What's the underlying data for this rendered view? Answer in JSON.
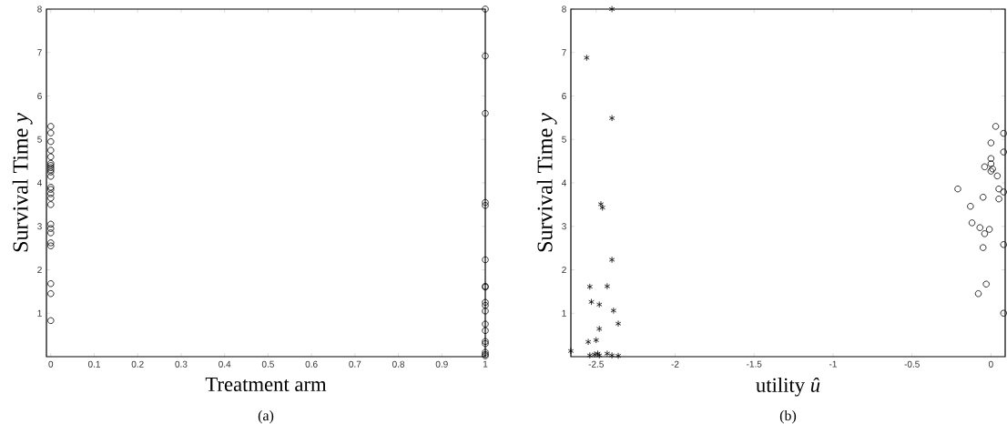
{
  "chart_data": [
    {
      "type": "scatter",
      "xlabel": "Treatment arm",
      "ylabel": "Survival Time *y*",
      "annotations": [
        "(a)"
      ],
      "xlim": [
        -0.01,
        1.0
      ],
      "ylim": [
        0,
        8
      ],
      "xticks": [
        0,
        0.1,
        0.2,
        0.3,
        0.4,
        0.5,
        0.6,
        0.7,
        0.8,
        0.9,
        1
      ],
      "yticks": [
        1,
        2,
        3,
        4,
        5,
        6,
        7,
        8
      ],
      "series": [
        {
          "color": "#000000",
          "marker": "circle",
          "x": [
            0,
            0,
            0,
            0,
            0,
            0,
            0,
            0,
            0,
            0,
            0,
            0,
            0,
            0,
            0,
            0,
            0,
            0,
            0,
            0,
            0,
            0,
            0,
            0
          ],
          "values": [
            0.83,
            1.45,
            1.68,
            2.55,
            2.62,
            2.85,
            2.95,
            3.05,
            3.5,
            3.65,
            3.75,
            3.85,
            3.9,
            4.15,
            4.25,
            4.3,
            4.35,
            4.4,
            4.45,
            4.6,
            4.75,
            4.95,
            5.15,
            5.3
          ]
        },
        {
          "color": "#000000",
          "marker": "circle",
          "x": [
            1,
            1,
            1,
            1,
            1,
            1,
            1,
            1,
            1,
            1,
            1,
            1,
            1,
            1,
            1,
            1,
            1,
            1
          ],
          "values": [
            8.0,
            6.92,
            5.6,
            3.55,
            3.48,
            2.23,
            1.62,
            1.6,
            1.25,
            1.18,
            1.05,
            0.75,
            0.6,
            0.35,
            0.3,
            0.1,
            0.05,
            0.02
          ]
        }
      ]
    },
    {
      "type": "scatter",
      "xlabel": "utility *û*",
      "ylabel": "Survival Time *y*",
      "annotations": [
        "(b)"
      ],
      "xlim": [
        -2.66,
        0.09
      ],
      "ylim": [
        0,
        8
      ],
      "xticks": [
        -2.5,
        -2,
        -1.5,
        -1,
        -0.5,
        0
      ],
      "yticks": [
        1,
        2,
        3,
        4,
        5,
        6,
        7,
        8
      ],
      "series": [
        {
          "color": "#000000",
          "marker": "cross",
          "x": [
            -2.4,
            -2.56,
            -2.4,
            -2.47,
            -2.46,
            -2.4,
            -2.54,
            -2.43,
            -2.53,
            -2.48,
            -2.39,
            -2.36,
            -2.48,
            -2.55,
            -2.5,
            -2.66,
            -2.54,
            -2.51,
            -2.49,
            -2.48,
            -2.43,
            -2.4,
            -2.36
          ],
          "values": [
            8.0,
            6.88,
            5.49,
            3.51,
            3.43,
            2.23,
            1.61,
            1.62,
            1.26,
            1.2,
            1.06,
            0.76,
            0.64,
            0.34,
            0.38,
            0.13,
            0.03,
            0.05,
            0.07,
            0.03,
            0.07,
            0.03,
            0.02
          ]
        },
        {
          "color": "#000000",
          "marker": "circle",
          "x": [
            0.03,
            0.08,
            0.0,
            0.08,
            0.0,
            0.0,
            -0.04,
            0.01,
            0.0,
            0.04,
            -0.21,
            0.05,
            0.08,
            -0.05,
            0.05,
            -0.13,
            -0.12,
            -0.07,
            -0.01,
            -0.04,
            -0.05,
            0.08,
            -0.03,
            -0.08,
            0.08
          ],
          "values": [
            5.3,
            5.14,
            4.92,
            4.71,
            4.56,
            4.44,
            4.37,
            4.32,
            4.27,
            4.16,
            3.86,
            3.86,
            3.79,
            3.67,
            3.63,
            3.46,
            3.08,
            2.97,
            2.93,
            2.83,
            2.51,
            2.58,
            1.67,
            1.45,
            1.0
          ]
        }
      ]
    }
  ]
}
